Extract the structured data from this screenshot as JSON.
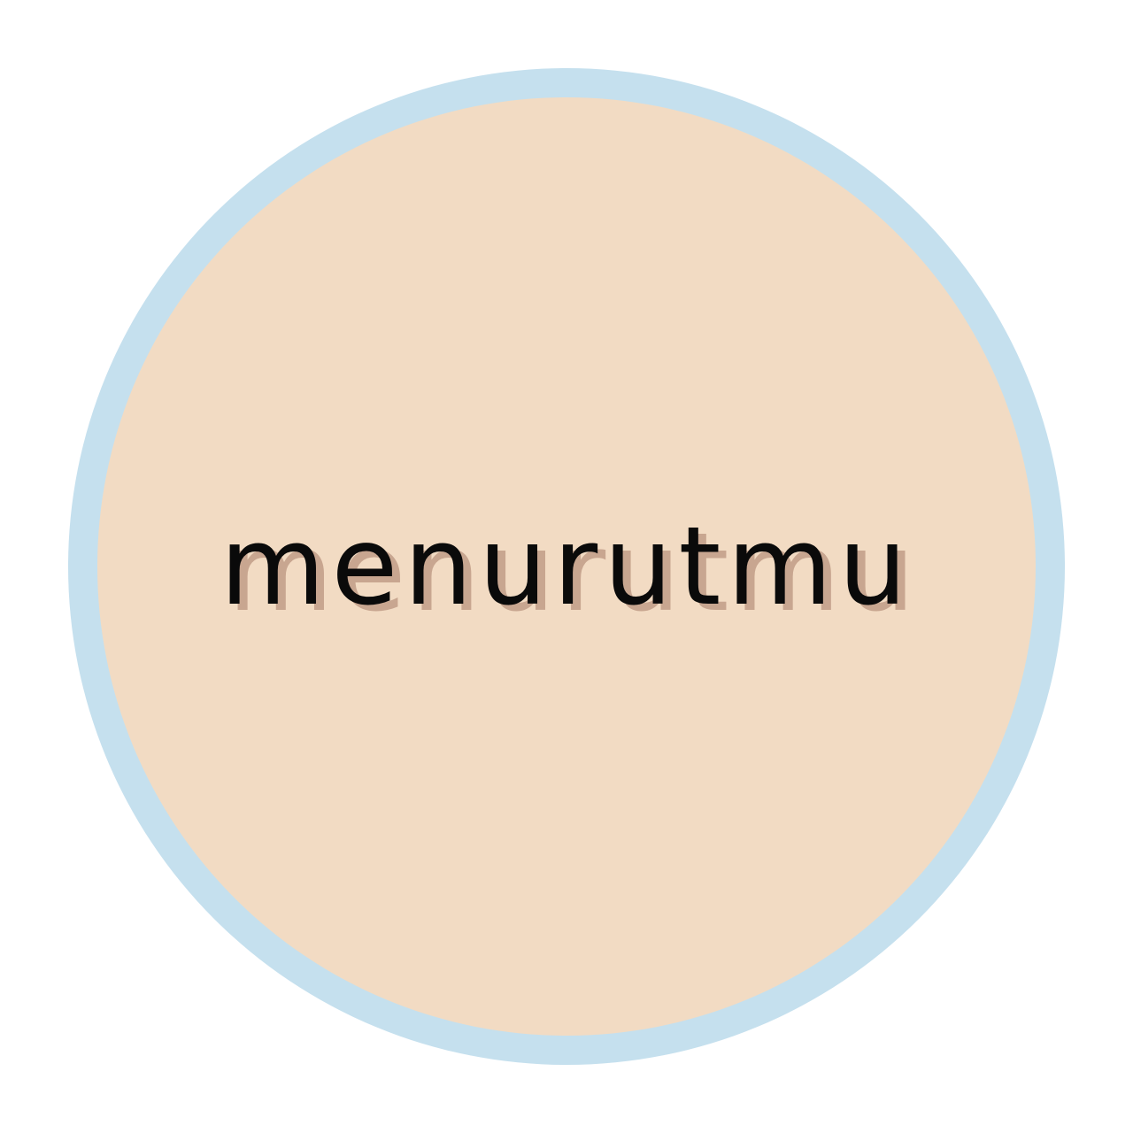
{
  "logo": {
    "text": "menurutmu"
  },
  "colors": {
    "background": "#ffffff",
    "ring": "#c5e0ee",
    "disc": "#f2dbc3",
    "text": "#0a0a0a",
    "text_shadow": "#c8a690"
  }
}
